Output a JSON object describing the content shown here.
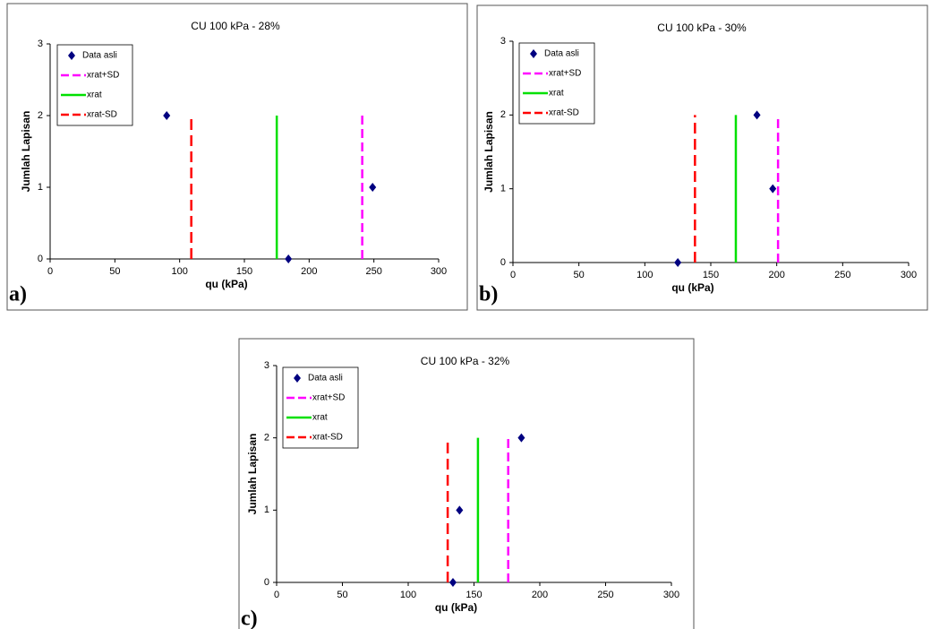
{
  "chart_data": [
    {
      "type": "scatter",
      "title": "CU 100 kPa - 28%",
      "x_label": "qu (kPa)",
      "y_label": "Jumlah Lapisan",
      "panel_label": "a)",
      "xlim": [
        0,
        300
      ],
      "xticks": [
        0,
        50,
        100,
        150,
        200,
        250,
        300
      ],
      "ylim": [
        0,
        3
      ],
      "yticks": [
        0,
        1,
        2,
        3
      ],
      "series": [
        {
          "name": "Data asli",
          "color": "#000080",
          "x": [
            90,
            184,
            249
          ],
          "values": [
            2,
            0,
            1
          ]
        },
        {
          "name": "xrat+SD",
          "color": "#ff00ff",
          "x": [
            241,
            241
          ],
          "values": [
            0,
            2
          ]
        },
        {
          "name": "xrat",
          "color": "#00e000",
          "x": [
            175,
            175
          ],
          "values": [
            0,
            2
          ]
        },
        {
          "name": "xrat-SD",
          "color": "#ff0000",
          "x": [
            109,
            109
          ],
          "values": [
            0,
            2
          ]
        }
      ]
    },
    {
      "type": "scatter",
      "title": "CU 100 kPa - 30%",
      "x_label": "qu (kPa)",
      "y_label": "Jumlah Lapisan",
      "panel_label": "b)",
      "xlim": [
        0,
        300
      ],
      "xticks": [
        0,
        50,
        100,
        150,
        200,
        250,
        300
      ],
      "ylim": [
        0,
        3
      ],
      "yticks": [
        0,
        1,
        2,
        3
      ],
      "series": [
        {
          "name": "Data asli",
          "color": "#000080",
          "x": [
            125,
            185,
            197
          ],
          "values": [
            0,
            2,
            1
          ]
        },
        {
          "name": "xrat+SD",
          "color": "#ff00ff",
          "x": [
            201,
            201
          ],
          "values": [
            0,
            2
          ]
        },
        {
          "name": "xrat",
          "color": "#00e000",
          "x": [
            169,
            169
          ],
          "values": [
            0,
            2
          ]
        },
        {
          "name": "xrat-SD",
          "color": "#ff0000",
          "x": [
            138,
            138
          ],
          "values": [
            0,
            2
          ]
        }
      ]
    },
    {
      "type": "scatter",
      "title": "CU 100 kPa - 32%",
      "x_label": "qu (kPa)",
      "y_label": "Jumlah Lapisan",
      "panel_label": "c)",
      "xlim": [
        0,
        300
      ],
      "xticks": [
        0,
        50,
        100,
        150,
        200,
        250,
        300
      ],
      "ylim": [
        0,
        3
      ],
      "yticks": [
        0,
        1,
        2,
        3
      ],
      "series": [
        {
          "name": "Data asli",
          "color": "#000080",
          "x": [
            134,
            139,
            186
          ],
          "values": [
            0,
            1,
            2
          ]
        },
        {
          "name": "xrat+SD",
          "color": "#ff00ff",
          "x": [
            176,
            176
          ],
          "values": [
            0,
            2
          ]
        },
        {
          "name": "xrat",
          "color": "#00e000",
          "x": [
            153,
            153
          ],
          "values": [
            0,
            2
          ]
        },
        {
          "name": "xrat-SD",
          "color": "#ff0000",
          "x": [
            130,
            130
          ],
          "values": [
            0,
            2
          ]
        }
      ]
    }
  ]
}
